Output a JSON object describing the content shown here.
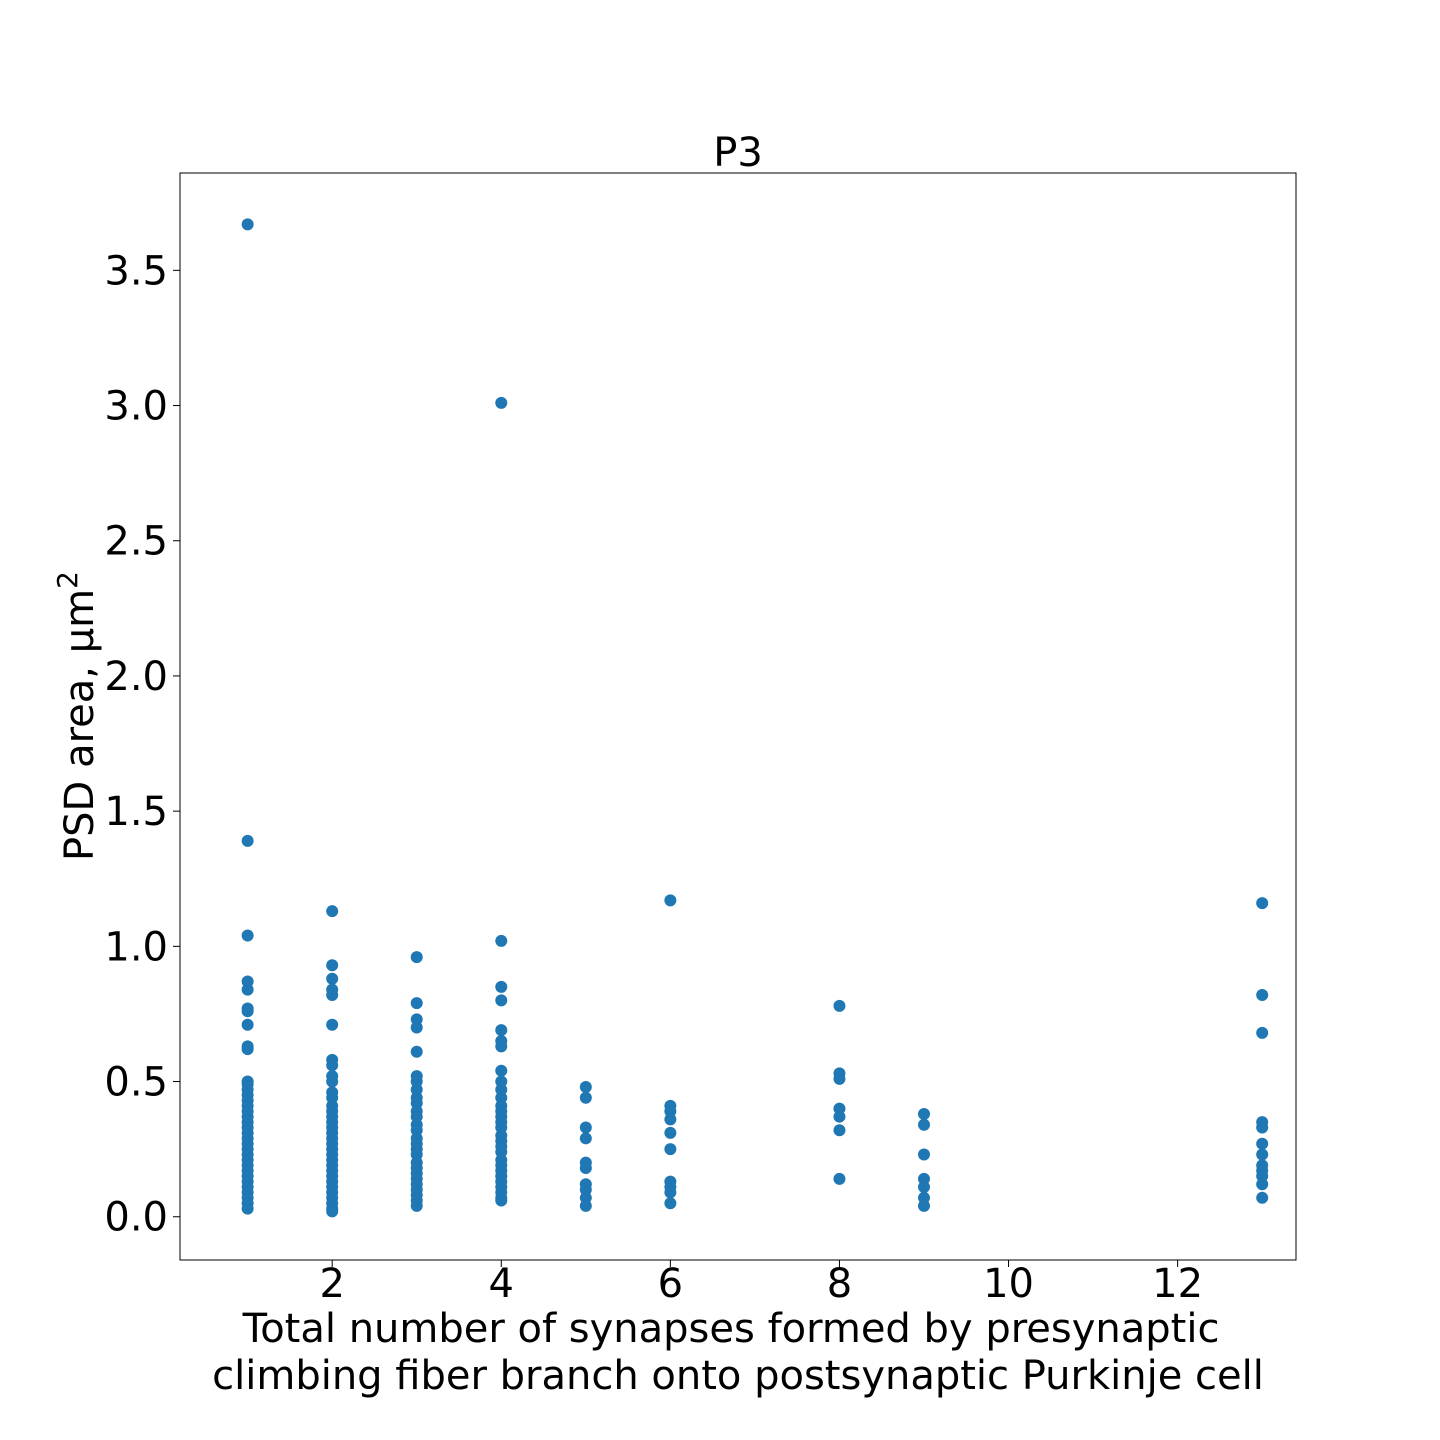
{
  "chart_data": {
    "type": "scatter",
    "title": "P3",
    "xlabel_lines": [
      "Total number of synapses formed by presynaptic",
      "climbing fiber branch onto postsynaptic Purkinje cell"
    ],
    "ylabel": "PSD area, μm",
    "ylabel_superscript": "2",
    "xlim": [
      0.2,
      13.4
    ],
    "ylim": [
      -0.16,
      3.86
    ],
    "xticks": [
      2,
      4,
      6,
      8,
      10,
      12
    ],
    "xtick_labels": [
      "2",
      "4",
      "6",
      "8",
      "10",
      "12"
    ],
    "yticks": [
      0.0,
      0.5,
      1.0,
      1.5,
      2.0,
      2.5,
      3.0,
      3.5
    ],
    "ytick_labels": [
      "0.0",
      "0.5",
      "1.0",
      "1.5",
      "2.0",
      "2.5",
      "3.0",
      "3.5"
    ],
    "grid": false,
    "marker_color": "#1f77b4",
    "points": [
      [
        1,
        3.67
      ],
      [
        1,
        1.39
      ],
      [
        1,
        1.04
      ],
      [
        1,
        0.87
      ],
      [
        1,
        0.84
      ],
      [
        1,
        0.77
      ],
      [
        1,
        0.76
      ],
      [
        1,
        0.71
      ],
      [
        1,
        0.63
      ],
      [
        1,
        0.62
      ],
      [
        1,
        0.5
      ],
      [
        1,
        0.49
      ],
      [
        1,
        0.47
      ],
      [
        1,
        0.45
      ],
      [
        1,
        0.43
      ],
      [
        1,
        0.41
      ],
      [
        1,
        0.39
      ],
      [
        1,
        0.37
      ],
      [
        1,
        0.35
      ],
      [
        1,
        0.33
      ],
      [
        1,
        0.31
      ],
      [
        1,
        0.29
      ],
      [
        1,
        0.27
      ],
      [
        1,
        0.25
      ],
      [
        1,
        0.23
      ],
      [
        1,
        0.21
      ],
      [
        1,
        0.19
      ],
      [
        1,
        0.17
      ],
      [
        1,
        0.15
      ],
      [
        1,
        0.13
      ],
      [
        1,
        0.11
      ],
      [
        1,
        0.09
      ],
      [
        1,
        0.07
      ],
      [
        1,
        0.05
      ],
      [
        1,
        0.03
      ],
      [
        2,
        1.13
      ],
      [
        2,
        0.93
      ],
      [
        2,
        0.88
      ],
      [
        2,
        0.84
      ],
      [
        2,
        0.82
      ],
      [
        2,
        0.71
      ],
      [
        2,
        0.58
      ],
      [
        2,
        0.56
      ],
      [
        2,
        0.52
      ],
      [
        2,
        0.5
      ],
      [
        2,
        0.46
      ],
      [
        2,
        0.44
      ],
      [
        2,
        0.41
      ],
      [
        2,
        0.39
      ],
      [
        2,
        0.37
      ],
      [
        2,
        0.35
      ],
      [
        2,
        0.33
      ],
      [
        2,
        0.31
      ],
      [
        2,
        0.29
      ],
      [
        2,
        0.27
      ],
      [
        2,
        0.25
      ],
      [
        2,
        0.23
      ],
      [
        2,
        0.21
      ],
      [
        2,
        0.19
      ],
      [
        2,
        0.17
      ],
      [
        2,
        0.15
      ],
      [
        2,
        0.13
      ],
      [
        2,
        0.11
      ],
      [
        2,
        0.09
      ],
      [
        2,
        0.07
      ],
      [
        2,
        0.05
      ],
      [
        2,
        0.03
      ],
      [
        2,
        0.02
      ],
      [
        3,
        0.96
      ],
      [
        3,
        0.79
      ],
      [
        3,
        0.73
      ],
      [
        3,
        0.7
      ],
      [
        3,
        0.61
      ],
      [
        3,
        0.52
      ],
      [
        3,
        0.5
      ],
      [
        3,
        0.47
      ],
      [
        3,
        0.44
      ],
      [
        3,
        0.42
      ],
      [
        3,
        0.39
      ],
      [
        3,
        0.37
      ],
      [
        3,
        0.34
      ],
      [
        3,
        0.32
      ],
      [
        3,
        0.29
      ],
      [
        3,
        0.27
      ],
      [
        3,
        0.25
      ],
      [
        3,
        0.23
      ],
      [
        3,
        0.2
      ],
      [
        3,
        0.18
      ],
      [
        3,
        0.16
      ],
      [
        3,
        0.14
      ],
      [
        3,
        0.12
      ],
      [
        3,
        0.1
      ],
      [
        3,
        0.08
      ],
      [
        3,
        0.06
      ],
      [
        3,
        0.04
      ],
      [
        4,
        3.01
      ],
      [
        4,
        1.02
      ],
      [
        4,
        0.85
      ],
      [
        4,
        0.8
      ],
      [
        4,
        0.69
      ],
      [
        4,
        0.65
      ],
      [
        4,
        0.63
      ],
      [
        4,
        0.54
      ],
      [
        4,
        0.5
      ],
      [
        4,
        0.47
      ],
      [
        4,
        0.44
      ],
      [
        4,
        0.41
      ],
      [
        4,
        0.39
      ],
      [
        4,
        0.37
      ],
      [
        4,
        0.35
      ],
      [
        4,
        0.33
      ],
      [
        4,
        0.3
      ],
      [
        4,
        0.28
      ],
      [
        4,
        0.26
      ],
      [
        4,
        0.24
      ],
      [
        4,
        0.21
      ],
      [
        4,
        0.19
      ],
      [
        4,
        0.17
      ],
      [
        4,
        0.15
      ],
      [
        4,
        0.13
      ],
      [
        4,
        0.11
      ],
      [
        4,
        0.09
      ],
      [
        4,
        0.07
      ],
      [
        4,
        0.06
      ],
      [
        5,
        0.48
      ],
      [
        5,
        0.44
      ],
      [
        5,
        0.33
      ],
      [
        5,
        0.29
      ],
      [
        5,
        0.2
      ],
      [
        5,
        0.18
      ],
      [
        5,
        0.12
      ],
      [
        5,
        0.1
      ],
      [
        5,
        0.07
      ],
      [
        5,
        0.04
      ],
      [
        6,
        1.17
      ],
      [
        6,
        0.41
      ],
      [
        6,
        0.39
      ],
      [
        6,
        0.36
      ],
      [
        6,
        0.31
      ],
      [
        6,
        0.25
      ],
      [
        6,
        0.13
      ],
      [
        6,
        0.11
      ],
      [
        6,
        0.09
      ],
      [
        6,
        0.05
      ],
      [
        8,
        0.78
      ],
      [
        8,
        0.53
      ],
      [
        8,
        0.51
      ],
      [
        8,
        0.4
      ],
      [
        8,
        0.37
      ],
      [
        8,
        0.32
      ],
      [
        8,
        0.14
      ],
      [
        9,
        0.38
      ],
      [
        9,
        0.34
      ],
      [
        9,
        0.23
      ],
      [
        9,
        0.14
      ],
      [
        9,
        0.11
      ],
      [
        9,
        0.07
      ],
      [
        9,
        0.04
      ],
      [
        13,
        1.16
      ],
      [
        13,
        0.82
      ],
      [
        13,
        0.68
      ],
      [
        13,
        0.35
      ],
      [
        13,
        0.33
      ],
      [
        13,
        0.27
      ],
      [
        13,
        0.23
      ],
      [
        13,
        0.19
      ],
      [
        13,
        0.17
      ],
      [
        13,
        0.15
      ],
      [
        13,
        0.12
      ],
      [
        13,
        0.07
      ]
    ]
  }
}
